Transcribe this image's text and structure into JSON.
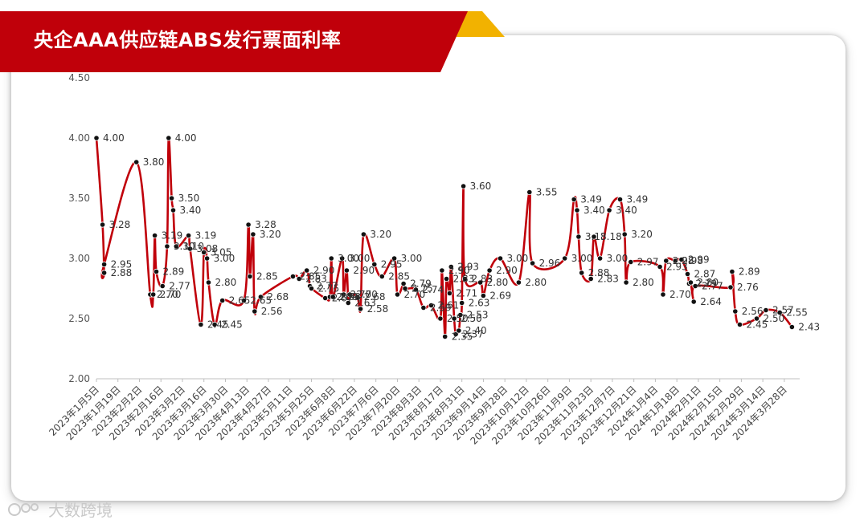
{
  "title": "央企AAA供应链ABS发行票面利率",
  "watermark": "大数跨境",
  "colors": {
    "line": "#c0000a",
    "banner": "#c0000a",
    "banner_accent": "#f2b200",
    "marker": "#111111"
  },
  "chart_data": {
    "type": "line",
    "title": "央企AAA供应链ABS发行票面利率",
    "xlabel": "",
    "ylabel": "",
    "ylim": [
      2.0,
      4.5
    ],
    "yticks": [
      "4.50",
      "4.00",
      "3.50",
      "3.00",
      "2.50",
      "2.00"
    ],
    "xlim": [
      "2023-01-05",
      "2024-04-07"
    ],
    "xtick_labels": [
      "2023年1月5日",
      "2023年1月19日",
      "2023年2月2日",
      "2023年2月16日",
      "2023年3月2日",
      "2023年3月16日",
      "2023年3月30日",
      "2023年4月13日",
      "2023年4月27日",
      "2023年5月11日",
      "2023年5月25日",
      "2023年6月8日",
      "2023年6月22日",
      "2023年7月6日",
      "2023年7月20日",
      "2023年8月3日",
      "2023年8月17日",
      "2023年8月31日",
      "2023年9月14日",
      "2023年9月28日",
      "2023年10月12日",
      "2023年10月26日",
      "2023年11月9日",
      "2023年11月23日",
      "2023年12月7日",
      "2023年12月21日",
      "2024年1月4日",
      "2024年1月18日",
      "2024年2月1日",
      "2024年2月15日",
      "2024年2月29日",
      "2024年3月14日",
      "2024年3月28日"
    ],
    "grid": false,
    "legend": "none",
    "series": [
      {
        "points": [
          {
            "x": "2023-01-05",
            "y": 4.0,
            "label": "4.00"
          },
          {
            "x": "2023-01-09",
            "y": 3.28,
            "label": "3.28"
          },
          {
            "x": "2023-01-10",
            "y": 2.88,
            "label": "2.88"
          },
          {
            "x": "2023-01-10",
            "y": 2.95,
            "label": "2.95"
          },
          {
            "x": "2023-01-31",
            "y": 3.8,
            "label": "3.80"
          },
          {
            "x": "2023-02-09",
            "y": 2.7,
            "label": "2.70"
          },
          {
            "x": "2023-02-11",
            "y": 2.7,
            "label": "2.70"
          },
          {
            "x": "2023-02-12",
            "y": 3.19,
            "label": "3.19"
          },
          {
            "x": "2023-02-13",
            "y": 2.89,
            "label": "2.89"
          },
          {
            "x": "2023-02-17",
            "y": 2.77,
            "label": "2.77"
          },
          {
            "x": "2023-02-20",
            "y": 3.1,
            "label": "3.10"
          },
          {
            "x": "2023-02-21",
            "y": 4.0,
            "label": "4.00"
          },
          {
            "x": "2023-02-23",
            "y": 3.5,
            "label": "3.50"
          },
          {
            "x": "2023-02-24",
            "y": 3.4,
            "label": "3.40"
          },
          {
            "x": "2023-02-26",
            "y": 3.1,
            "label": "3.10"
          },
          {
            "x": "2023-03-06",
            "y": 3.19,
            "label": "3.19"
          },
          {
            "x": "2023-03-07",
            "y": 3.08,
            "label": "3.08"
          },
          {
            "x": "2023-03-14",
            "y": 2.45,
            "label": "2.45"
          },
          {
            "x": "2023-03-16",
            "y": 3.05,
            "label": "3.05"
          },
          {
            "x": "2023-03-18",
            "y": 3.0,
            "label": "3.00"
          },
          {
            "x": "2023-03-19",
            "y": 2.8,
            "label": "2.80"
          },
          {
            "x": "2023-03-23",
            "y": 2.45,
            "label": "2.45"
          },
          {
            "x": "2023-03-28",
            "y": 2.65,
            "label": "2.65"
          },
          {
            "x": "2023-04-11",
            "y": 2.65,
            "label": "2.65"
          },
          {
            "x": "2023-04-14",
            "y": 3.28,
            "label": "3.28"
          },
          {
            "x": "2023-04-15",
            "y": 2.85,
            "label": "2.85"
          },
          {
            "x": "2023-04-17",
            "y": 3.2,
            "label": "3.20"
          },
          {
            "x": "2023-04-18",
            "y": 2.56,
            "label": "2.56"
          },
          {
            "x": "2023-04-22",
            "y": 2.68,
            "label": "2.68"
          },
          {
            "x": "2023-05-13",
            "y": 2.85,
            "label": "2.85"
          },
          {
            "x": "2023-05-17",
            "y": 2.83,
            "label": "2.83"
          },
          {
            "x": "2023-05-22",
            "y": 2.9,
            "label": "2.90"
          },
          {
            "x": "2023-05-24",
            "y": 2.77,
            "label": "2.77"
          },
          {
            "x": "2023-05-25",
            "y": 2.75,
            "label": "2.75"
          },
          {
            "x": "2023-06-03",
            "y": 2.67,
            "label": "2.67"
          },
          {
            "x": "2023-06-06",
            "y": 2.68,
            "label": "2.68"
          },
          {
            "x": "2023-06-07",
            "y": 3.0,
            "label": "3.00"
          },
          {
            "x": "2023-06-08",
            "y": 2.68,
            "label": "2.68"
          },
          {
            "x": "2023-06-14",
            "y": 3.0,
            "label": "3.00"
          },
          {
            "x": "2023-06-15",
            "y": 2.7,
            "label": "2.70"
          },
          {
            "x": "2023-06-17",
            "y": 2.9,
            "label": "2.90"
          },
          {
            "x": "2023-06-18",
            "y": 2.63,
            "label": "2.63"
          },
          {
            "x": "2023-06-19",
            "y": 2.7,
            "label": "2.70"
          },
          {
            "x": "2023-06-24",
            "y": 2.68,
            "label": "2.68"
          },
          {
            "x": "2023-06-26",
            "y": 2.58,
            "label": "2.58"
          },
          {
            "x": "2023-06-28",
            "y": 3.2,
            "label": "3.20"
          },
          {
            "x": "2023-07-05",
            "y": 2.95,
            "label": "2.95"
          },
          {
            "x": "2023-07-10",
            "y": 2.85,
            "label": "2.85"
          },
          {
            "x": "2023-07-18",
            "y": 3.0,
            "label": "3.00"
          },
          {
            "x": "2023-07-20",
            "y": 2.7,
            "label": "2.70"
          },
          {
            "x": "2023-07-24",
            "y": 2.79,
            "label": "2.79"
          },
          {
            "x": "2023-07-25",
            "y": 2.75,
            "label": "2.75"
          },
          {
            "x": "2023-08-01",
            "y": 2.74,
            "label": "2.74"
          },
          {
            "x": "2023-08-06",
            "y": 2.59,
            "label": "2.59"
          },
          {
            "x": "2023-08-11",
            "y": 2.61,
            "label": "2.61"
          },
          {
            "x": "2023-08-17",
            "y": 2.5,
            "label": "2.50"
          },
          {
            "x": "2023-08-18",
            "y": 2.9,
            "label": "2.90"
          },
          {
            "x": "2023-08-20",
            "y": 2.35,
            "label": "2.35"
          },
          {
            "x": "2023-08-21",
            "y": 2.83,
            "label": "2.83"
          },
          {
            "x": "2023-08-23",
            "y": 2.71,
            "label": "2.71"
          },
          {
            "x": "2023-08-24",
            "y": 2.93,
            "label": "2.93"
          },
          {
            "x": "2023-08-26",
            "y": 2.5,
            "label": "2.50"
          },
          {
            "x": "2023-08-27",
            "y": 2.37,
            "label": "2.37"
          },
          {
            "x": "2023-08-29",
            "y": 2.4,
            "label": "2.40"
          },
          {
            "x": "2023-08-30",
            "y": 2.53,
            "label": "2.53"
          },
          {
            "x": "2023-08-31",
            "y": 2.63,
            "label": "2.63"
          },
          {
            "x": "2023-09-01",
            "y": 3.6,
            "label": "3.60"
          },
          {
            "x": "2023-09-02",
            "y": 2.83,
            "label": "2.83"
          },
          {
            "x": "2023-09-12",
            "y": 2.8,
            "label": "2.80"
          },
          {
            "x": "2023-09-14",
            "y": 2.69,
            "label": "2.69"
          },
          {
            "x": "2023-09-18",
            "y": 2.9,
            "label": "2.90"
          },
          {
            "x": "2023-09-25",
            "y": 3.0,
            "label": "3.00"
          },
          {
            "x": "2023-10-07",
            "y": 2.8,
            "label": "2.80"
          },
          {
            "x": "2023-10-14",
            "y": 3.55,
            "label": "3.55"
          },
          {
            "x": "2023-10-16",
            "y": 2.96,
            "label": "2.96"
          },
          {
            "x": "2023-11-06",
            "y": 3.0,
            "label": "3.00"
          },
          {
            "x": "2023-11-12",
            "y": 3.49,
            "label": "3.49"
          },
          {
            "x": "2023-11-14",
            "y": 3.4,
            "label": "3.40"
          },
          {
            "x": "2023-11-15",
            "y": 3.18,
            "label": "3.18"
          },
          {
            "x": "2023-11-17",
            "y": 2.88,
            "label": "2.88"
          },
          {
            "x": "2023-11-23",
            "y": 2.83,
            "label": "2.83"
          },
          {
            "x": "2023-11-25",
            "y": 3.18,
            "label": "3.18"
          },
          {
            "x": "2023-11-29",
            "y": 3.0,
            "label": "3.00"
          },
          {
            "x": "2023-12-05",
            "y": 3.4,
            "label": "3.40"
          },
          {
            "x": "2023-12-12",
            "y": 3.49,
            "label": "3.49"
          },
          {
            "x": "2023-12-15",
            "y": 3.2,
            "label": "3.20"
          },
          {
            "x": "2023-12-16",
            "y": 2.8,
            "label": "2.80"
          },
          {
            "x": "2023-12-19",
            "y": 2.97,
            "label": "2.97"
          },
          {
            "x": "2024-01-07",
            "y": 2.93,
            "label": "2.93"
          },
          {
            "x": "2024-01-09",
            "y": 2.7,
            "label": "2.70"
          },
          {
            "x": "2024-01-11",
            "y": 2.98,
            "label": "2.98"
          },
          {
            "x": "2024-01-17",
            "y": 2.98,
            "label": "2.98"
          },
          {
            "x": "2024-01-21",
            "y": 2.99,
            "label": "2.99"
          },
          {
            "x": "2024-01-25",
            "y": 2.87,
            "label": "2.87"
          },
          {
            "x": "2024-01-26",
            "y": 2.79,
            "label": "2.79"
          },
          {
            "x": "2024-01-27",
            "y": 2.8,
            "label": "2.80"
          },
          {
            "x": "2024-01-29",
            "y": 2.64,
            "label": "2.64"
          },
          {
            "x": "2024-01-30",
            "y": 2.77,
            "label": "2.77"
          },
          {
            "x": "2024-02-22",
            "y": 2.76,
            "label": "2.76"
          },
          {
            "x": "2024-02-23",
            "y": 2.89,
            "label": "2.89"
          },
          {
            "x": "2024-02-25",
            "y": 2.56,
            "label": "2.56"
          },
          {
            "x": "2024-02-28",
            "y": 2.45,
            "label": "2.45"
          },
          {
            "x": "2024-03-10",
            "y": 2.5,
            "label": "2.50"
          },
          {
            "x": "2024-03-16",
            "y": 2.57,
            "label": "2.57"
          },
          {
            "x": "2024-03-25",
            "y": 2.55,
            "label": "2.55"
          },
          {
            "x": "2024-04-02",
            "y": 2.43,
            "label": "2.43"
          }
        ]
      }
    ]
  }
}
